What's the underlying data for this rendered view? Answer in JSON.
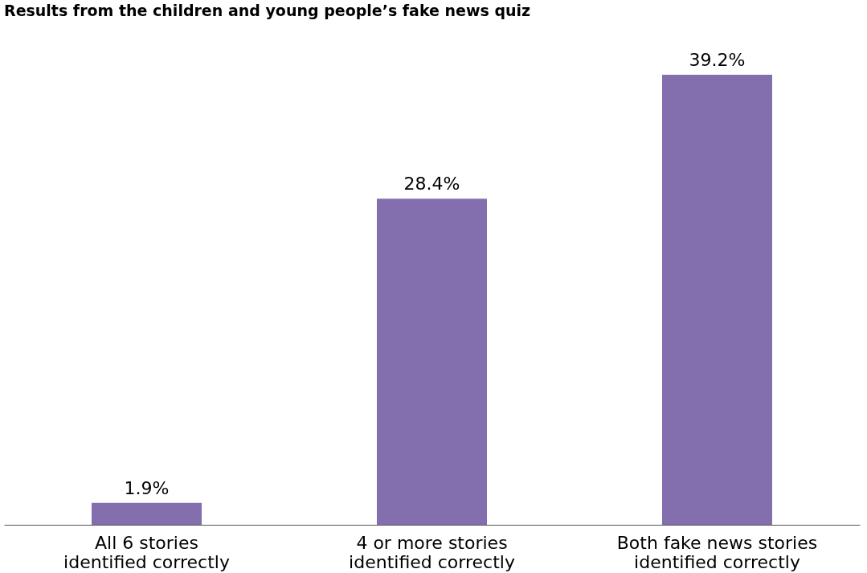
{
  "chart_data": {
    "type": "bar",
    "title": "Results from the children and young people’s fake news quiz",
    "categories": [
      "All 6 stories\nidentified correctly",
      "4 or more stories\nidentified correctly",
      "Both fake news stories\nidentified correctly"
    ],
    "values": [
      1.9,
      28.4,
      39.2
    ],
    "value_labels": [
      "1.9%",
      "28.4%",
      "39.2%"
    ],
    "color": "#836eae"
  }
}
